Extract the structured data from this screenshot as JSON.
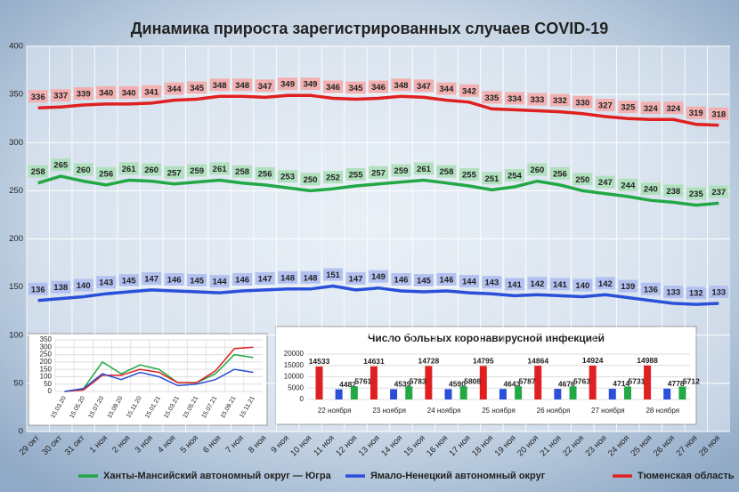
{
  "chart_data": [
    {
      "type": "line",
      "title": "Динамика прироста зарегистрированных случаев COVID-19",
      "categories": [
        "29 окт",
        "30 окт",
        "31 окт",
        "1 ноя",
        "2 ноя",
        "3 ноя",
        "4 ноя",
        "5 ноя",
        "6 ноя",
        "7 ноя",
        "8 ноя",
        "9 ноя",
        "10 ноя",
        "11 ноя",
        "12 ноя",
        "13 ноя",
        "14 ноя",
        "15 ноя",
        "16 ноя",
        "17 ноя",
        "18 ноя",
        "19 ноя",
        "20 ноя",
        "21 ноя",
        "22 ноя",
        "23 ноя",
        "24 ноя",
        "25 ноя",
        "26 ноя",
        "27 ноя",
        "28 ноя"
      ],
      "series": [
        {
          "name": "Ханты-Мансийский автономный округ — Югра",
          "color": "#22a845",
          "values": [
            258,
            265,
            260,
            256,
            261,
            260,
            257,
            259,
            261,
            258,
            256,
            253,
            250,
            252,
            255,
            257,
            259,
            261,
            258,
            255,
            251,
            254,
            260,
            256,
            250,
            247,
            244,
            240,
            238,
            235,
            237
          ]
        },
        {
          "name": "Ямало-Ненецкий автономный округ",
          "color": "#2a4fd8",
          "values": [
            136,
            138,
            140,
            143,
            145,
            147,
            146,
            145,
            144,
            146,
            147,
            148,
            148,
            151,
            147,
            149,
            146,
            145,
            146,
            144,
            143,
            141,
            142,
            141,
            140,
            142,
            139,
            136,
            133,
            132,
            133
          ]
        },
        {
          "name": "Тюменская область",
          "color": "#e02020",
          "values": [
            336,
            337,
            339,
            340,
            340,
            341,
            344,
            345,
            348,
            348,
            347,
            349,
            349,
            346,
            345,
            346,
            348,
            347,
            344,
            342,
            335,
            334,
            333,
            332,
            330,
            327,
            325,
            324,
            324,
            319,
            318
          ]
        }
      ],
      "ylim": [
        0,
        400
      ],
      "yticks": [
        0,
        50,
        100,
        150,
        200,
        250,
        300,
        350,
        400
      ],
      "grid": true
    },
    {
      "type": "line",
      "categories": [
        "15.03.20",
        "15.05.20",
        "15.07.20",
        "15.09.20",
        "15.11.20",
        "15.01.21",
        "15.03.21",
        "15.05.21",
        "15.07.21",
        "15.09.21",
        "15.11.21"
      ],
      "series": [
        {
          "color": "#22a845",
          "values": [
            0,
            20,
            200,
            120,
            180,
            150,
            60,
            60,
            120,
            250,
            230
          ]
        },
        {
          "color": "#e02020",
          "values": [
            0,
            10,
            110,
            110,
            150,
            130,
            60,
            60,
            140,
            290,
            300
          ]
        },
        {
          "color": "#2a4fd8",
          "values": [
            0,
            20,
            120,
            80,
            130,
            100,
            40,
            50,
            80,
            150,
            130
          ]
        }
      ],
      "ylim": [
        0,
        350
      ],
      "yticks": [
        0,
        50,
        100,
        150,
        200,
        250,
        300,
        350
      ],
      "grid": true
    },
    {
      "type": "bar",
      "title": "Число больных  коронавирусной  инфекцией",
      "categories": [
        "22 ноября",
        "23 ноября",
        "24 ноября",
        "25 ноября",
        "26 ноября",
        "27 ноября",
        "28 ноября"
      ],
      "series": [
        {
          "color": "#e02020",
          "values": [
            14533,
            14631,
            14728,
            14795,
            14864,
            14924,
            14988
          ]
        },
        {
          "color": "#2a4fd8",
          "values": [
            4482,
            4539,
            4590,
            4643,
            4676,
            4714,
            4778
          ]
        },
        {
          "color": "#22a845",
          "values": [
            5761,
            5783,
            5808,
            5787,
            5763,
            5731,
            5712
          ]
        }
      ],
      "ylim": [
        0,
        20000
      ],
      "yticks": [
        0,
        5000,
        10000,
        15000,
        20000
      ],
      "grid": true
    }
  ]
}
